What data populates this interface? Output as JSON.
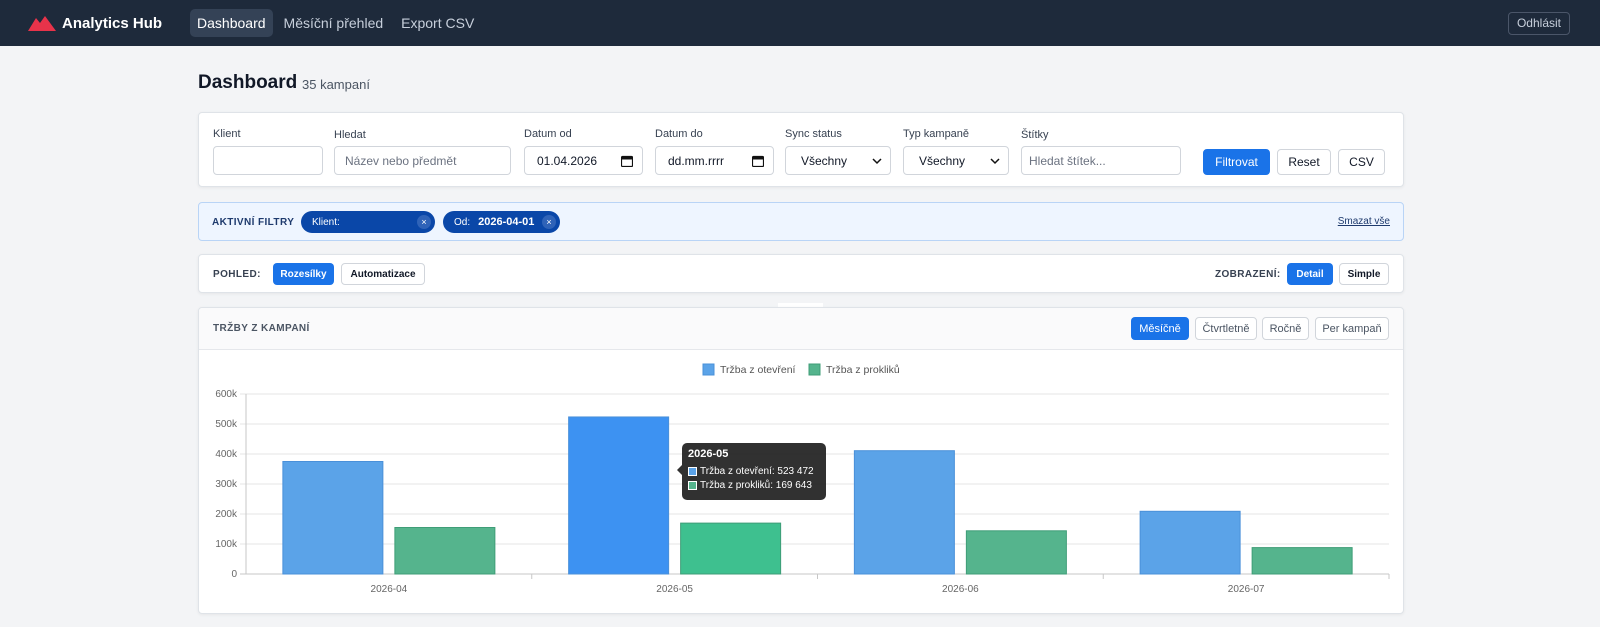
{
  "navbar": {
    "brand": "Analytics Hub",
    "links": [
      {
        "label": "Dashboard",
        "active": true
      },
      {
        "label": "Měsíční přehled",
        "active": false
      },
      {
        "label": "Export CSV",
        "active": false
      }
    ],
    "logout_label": "Odhlásit"
  },
  "page": {
    "title": "Dashboard",
    "count": "35 kampaní"
  },
  "filters": {
    "client": {
      "label": "Klient",
      "value": ""
    },
    "search": {
      "label": "Hledat",
      "placeholder": "Název nebo předmět"
    },
    "date_from": {
      "label": "Datum od",
      "value": "01.04.2026"
    },
    "date_to": {
      "label": "Datum do",
      "placeholder": "dd.mm.rrrr"
    },
    "sync_status": {
      "label": "Sync status",
      "selected": "Všechny"
    },
    "campaign_type": {
      "label": "Typ kampaně",
      "selected": "Všechny"
    },
    "tags": {
      "label": "Štítky",
      "placeholder": "Hledat štítek..."
    },
    "filter_button": "Filtrovat",
    "reset_button": "Reset",
    "csv_button": "CSV"
  },
  "active_filters": {
    "label": "AKTIVNÍ FILTRY",
    "chips": [
      {
        "key": "Klient:",
        "value": ""
      },
      {
        "key": "Od:",
        "value": "2026-04-01"
      }
    ],
    "remove_symbol": "×",
    "clear_all": "Smazat vše"
  },
  "view": {
    "label": "POHLED:",
    "options": [
      {
        "label": "Rozesílky",
        "active": true
      },
      {
        "label": "Automatizace",
        "active": false
      }
    ],
    "display_label": "ZOBRAZENÍ:",
    "display_options": [
      {
        "label": "Detail",
        "active": true
      },
      {
        "label": "Simple",
        "active": false
      }
    ]
  },
  "chart_card": {
    "title": "TRŽBY Z KAMPANÍ",
    "periods": [
      {
        "label": "Měsíčně",
        "active": true
      },
      {
        "label": "Čtvrtletně",
        "active": false
      },
      {
        "label": "Ročně",
        "active": false
      },
      {
        "label": "Per kampaň",
        "active": false
      }
    ]
  },
  "chart_data": {
    "type": "bar",
    "categories": [
      "2026-04",
      "2026-05",
      "2026-06",
      "2026-07"
    ],
    "series": [
      {
        "name": "Tržba z otevření",
        "color": "#5ba3e8",
        "values": [
          375000,
          523472,
          411000,
          209000
        ]
      },
      {
        "name": "Tržba z prokliků",
        "color": "#55b48d",
        "values": [
          155000,
          169643,
          144000,
          88000
        ]
      }
    ],
    "ylim": [
      0,
      600000
    ],
    "y_ticks": [
      "0",
      "100k",
      "200k",
      "300k",
      "400k",
      "500k",
      "600k"
    ],
    "grid": true,
    "legend": "top-center"
  },
  "tooltip": {
    "title": "2026-05",
    "lines": [
      "Tržba z otevření: 523 472",
      "Tržba z prokliků: 169 643"
    ]
  }
}
